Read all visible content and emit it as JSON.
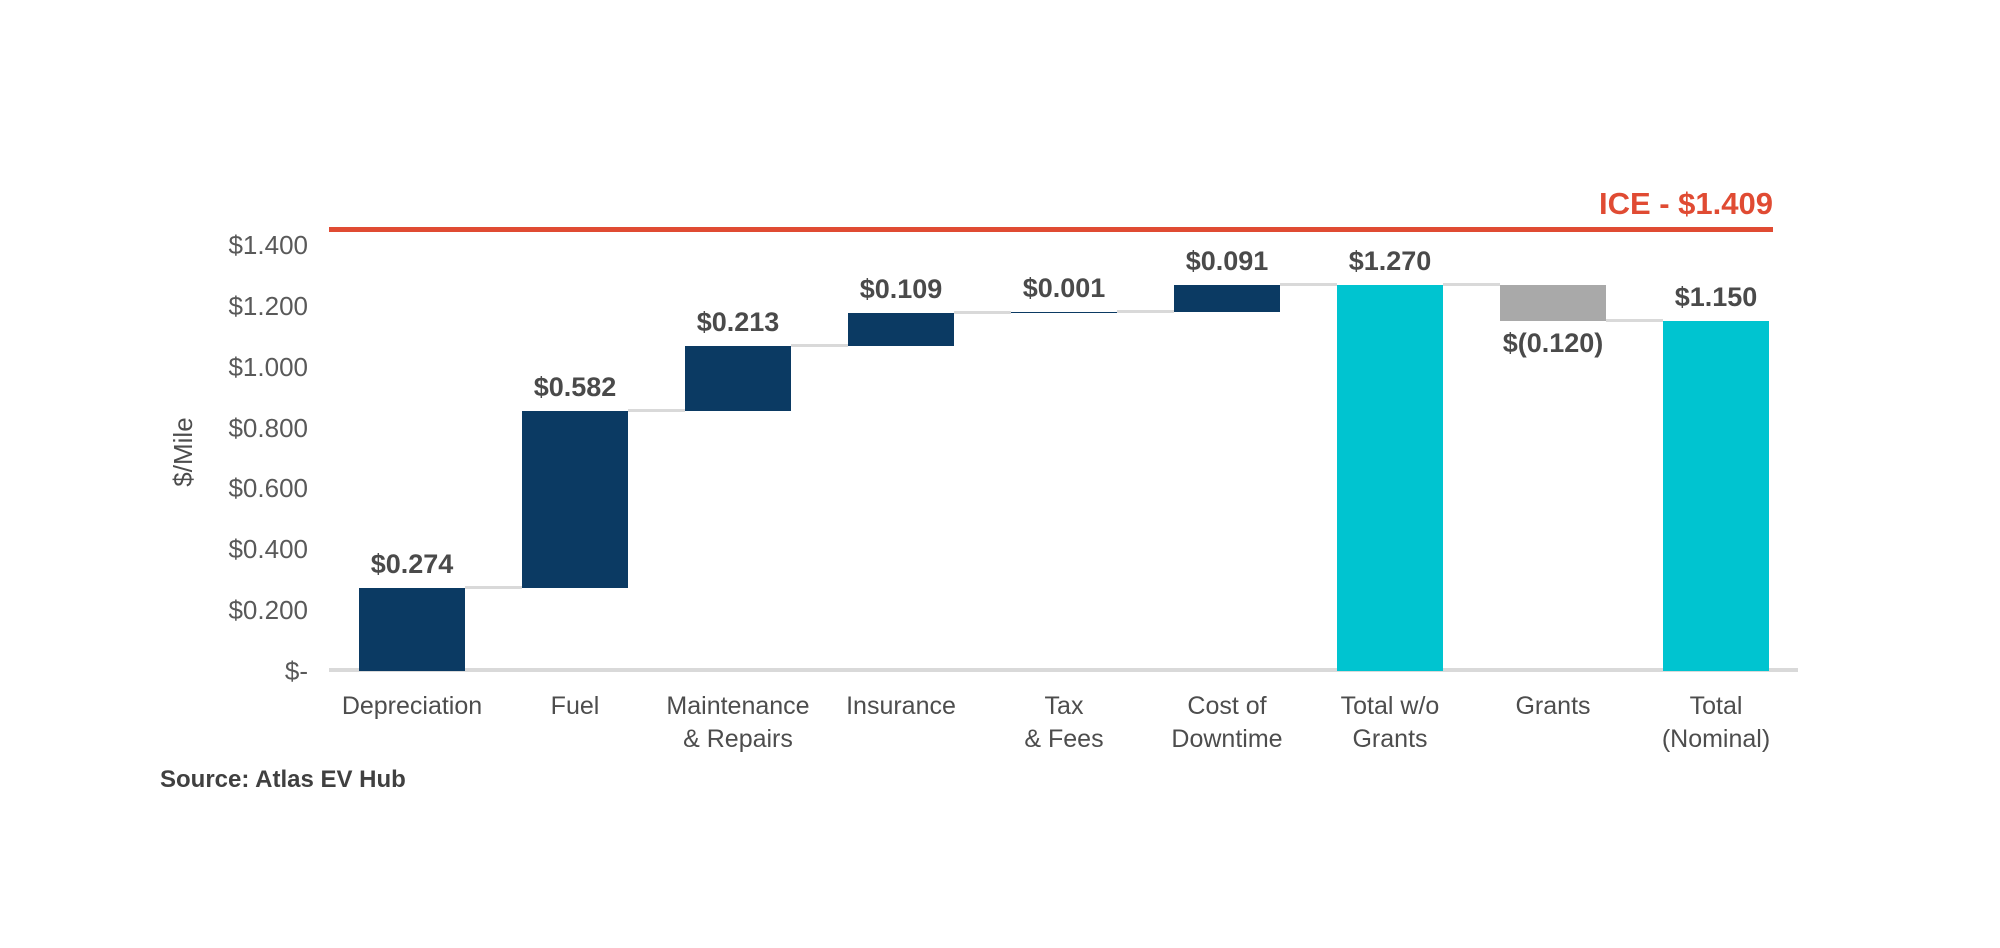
{
  "chart_data": {
    "type": "waterfall-bar",
    "title": "",
    "ylabel": "$/Mile",
    "ylim": [
      0,
      1.4
    ],
    "grid": false,
    "legend": null,
    "y_ticks": [
      {
        "label": "$-",
        "value": 0.0
      },
      {
        "label": "$0.200",
        "value": 0.2
      },
      {
        "label": "$0.400",
        "value": 0.4
      },
      {
        "label": "$0.600",
        "value": 0.6
      },
      {
        "label": "$0.800",
        "value": 0.8
      },
      {
        "label": "$1.000",
        "value": 1.0
      },
      {
        "label": "$1.200",
        "value": 1.2
      },
      {
        "label": "$1.400",
        "value": 1.4
      }
    ],
    "steps": [
      {
        "category": "Depreciation",
        "value": 0.274,
        "value_label": "$0.274",
        "kind": "increase"
      },
      {
        "category": "Fuel",
        "value": 0.582,
        "value_label": "$0.582",
        "kind": "increase"
      },
      {
        "category": "Maintenance\n& Repairs",
        "value": 0.213,
        "value_label": "$0.213",
        "kind": "increase"
      },
      {
        "category": "Insurance",
        "value": 0.109,
        "value_label": "$0.109",
        "kind": "increase"
      },
      {
        "category": "Tax\n& Fees",
        "value": 0.001,
        "value_label": "$0.001",
        "kind": "increase"
      },
      {
        "category": "Cost of\nDowntime",
        "value": 0.091,
        "value_label": "$0.091",
        "kind": "increase"
      },
      {
        "category": "Total w/o\nGrants",
        "value": 1.27,
        "value_label": "$1.270",
        "kind": "total"
      },
      {
        "category": "Grants",
        "value": -0.12,
        "value_label": "$(0.120)",
        "kind": "decrease"
      },
      {
        "category": "Total\n(Nominal)",
        "value": 1.15,
        "value_label": "$1.150",
        "kind": "total"
      }
    ],
    "reference_line": {
      "label": "ICE - $1.409",
      "value": 1.409
    },
    "source_note": "Source: Atlas EV Hub",
    "colors": {
      "increase": "#0b3a63",
      "decrease": "#a9a9a9",
      "total": "#00c4d0",
      "reference": "#e04b33",
      "connector": "#d9d9d9",
      "axis": "#d9d9d9",
      "value_text": "#4a4a4a",
      "tick_text": "#595959",
      "category_text": "#4d4d4d",
      "source_text": "#404040"
    }
  }
}
